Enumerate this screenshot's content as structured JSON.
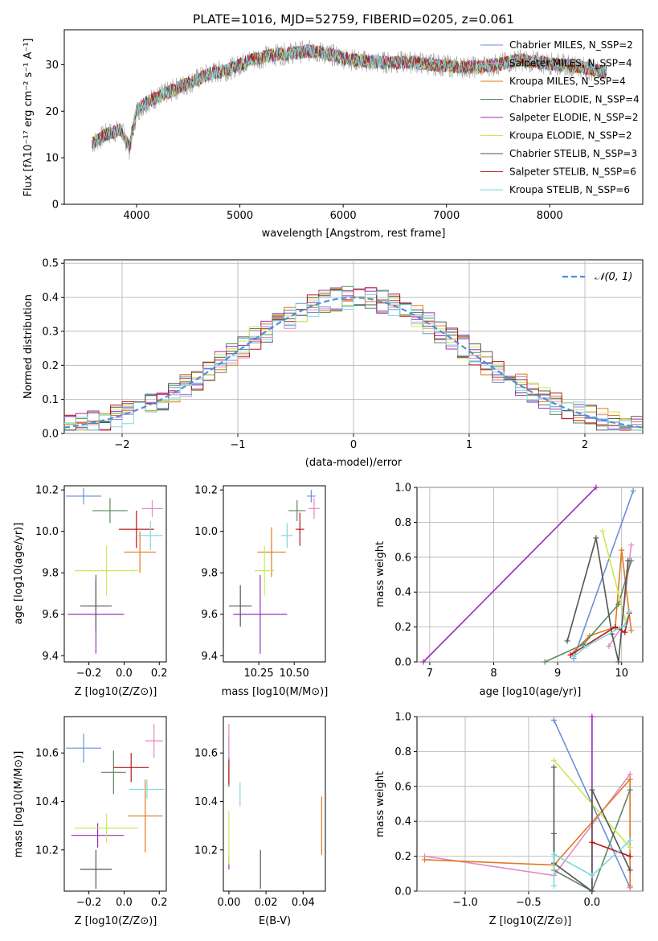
{
  "figure_title": "PLATE=1016, MJD=52759, FIBERID=0205, z=0.061",
  "colors": {
    "Chabrier MILES": "#6a8fd8",
    "Salpeter MILES": "#e48ac2",
    "Kroupa MILES": "#e07a22",
    "Chabrier ELODIE": "#5b8a5b",
    "Salpeter ELODIE": "#9b2fb5",
    "Kroupa ELODIE": "#c7ea55",
    "Chabrier STELIB": "#555555",
    "Salpeter STELIB": "#b81818",
    "Kroupa STELIB": "#7fd9dd",
    "data": "#a0a0a0",
    "gaussian": "#4d8fe0"
  },
  "chart_data": [
    {
      "id": "spectrum",
      "type": "line",
      "title": "PLATE=1016, MJD=52759, FIBERID=0205, z=0.061",
      "xlabel": "wavelength [Angstrom, rest frame]",
      "ylabel": "Flux [fλ10⁻¹⁷ erg cm⁻² s⁻¹ A⁻¹]",
      "xlim": [
        3300,
        8900
      ],
      "ylim": [
        0,
        37.5
      ],
      "xticks": [
        "4000",
        "5000",
        "6000",
        "7000",
        "8000"
      ],
      "yticks": [
        "0",
        "10",
        "20",
        "30"
      ],
      "legend_position": "top-right",
      "legend": [
        "Chabrier MILES, N_SSP=2",
        "Salpeter MILES, N_SSP=4",
        "Kroupa MILES, N_SSP=4",
        "Chabrier ELODIE, N_SSP=4",
        "Salpeter ELODIE, N_SSP=2",
        "Kroupa ELODIE, N_SSP=2",
        "Chabrier STELIB, N_SSP=3",
        "Salpeter STELIB, N_SSP=6",
        "Kroupa STELIB, N_SSP=6"
      ],
      "continuum_x": [
        3570,
        3700,
        3850,
        3930,
        4000,
        4100,
        4300,
        4500,
        4700,
        4900,
        5100,
        5300,
        5500,
        5700,
        5900,
        6100,
        6300,
        6500,
        6700,
        6900,
        7100,
        7300,
        7500,
        7700,
        7900,
        8100,
        8300,
        8500
      ],
      "continuum_y": [
        13,
        15,
        16,
        12,
        20,
        22,
        24,
        26,
        28,
        29,
        31,
        32,
        32.5,
        33,
        32,
        31,
        30.5,
        30.5,
        30.5,
        30,
        29.5,
        29.5,
        30,
        31,
        30.5,
        30,
        29.5,
        28.5
      ]
    },
    {
      "id": "residuals",
      "type": "line",
      "xlabel": "(data-model)/error",
      "ylabel": "Normed distribution",
      "xlim": [
        -2.5,
        2.5
      ],
      "ylim": [
        0,
        0.51
      ],
      "xticks": [
        "−2",
        "−1",
        "0",
        "1",
        "2"
      ],
      "yticks": [
        "0.0",
        "0.1",
        "0.2",
        "0.3",
        "0.4",
        "0.5"
      ],
      "grid": true,
      "legend_position": "top-right",
      "legend": [
        "𝒩(0, 1)"
      ],
      "gaussian": {
        "mean": 0,
        "sigma": 1
      }
    },
    {
      "id": "z_vs_age",
      "type": "scatter",
      "xlabel": "Z [log10(Z/Z⊙)]",
      "ylabel": "age  [log10(age/yr)]",
      "xlim": [
        -0.34,
        0.24
      ],
      "ylim": [
        9.37,
        10.22
      ],
      "xticks": [
        "−0.2",
        "0.0",
        "0.2"
      ],
      "yticks": [
        "9.4",
        "9.6",
        "9.8",
        "10.0",
        "10.2"
      ],
      "points": [
        {
          "model": "Chabrier MILES",
          "x": -0.23,
          "xerr": 0.1,
          "y": 10.17,
          "yerr": 0.04
        },
        {
          "model": "Salpeter MILES",
          "x": 0.16,
          "xerr": 0.06,
          "y": 10.11,
          "yerr": 0.04
        },
        {
          "model": "Kroupa MILES",
          "x": 0.09,
          "xerr": 0.09,
          "y": 9.9,
          "yerr": 0.1
        },
        {
          "model": "Chabrier ELODIE",
          "x": -0.08,
          "xerr": 0.1,
          "y": 10.1,
          "yerr": 0.06
        },
        {
          "model": "Salpeter ELODIE",
          "x": -0.16,
          "xerr": 0.16,
          "y": 9.6,
          "yerr": 0.19
        },
        {
          "model": "Kroupa ELODIE",
          "x": -0.1,
          "xerr": 0.18,
          "y": 9.81,
          "yerr": 0.12
        },
        {
          "model": "Chabrier STELIB",
          "x": -0.16,
          "xerr": 0.09,
          "y": 9.64,
          "yerr": 0.12
        },
        {
          "model": "Salpeter STELIB",
          "x": 0.07,
          "xerr": 0.1,
          "y": 10.01,
          "yerr": 0.09
        },
        {
          "model": "Kroupa STELIB",
          "x": 0.15,
          "xerr": 0.07,
          "y": 9.98,
          "yerr": 0.07
        }
      ]
    },
    {
      "id": "mass_vs_age",
      "type": "scatter",
      "xlabel": "mass [log10(M/M⊙)]",
      "xlim": [
        10.0,
        10.72
      ],
      "ylim": [
        9.37,
        10.22
      ],
      "xticks": [
        "10.25",
        "10.50"
      ],
      "yticks": [
        "9.4",
        "9.6",
        "9.8",
        "10.0",
        "10.2"
      ],
      "points": [
        {
          "model": "Chabrier MILES",
          "x": 10.62,
          "xerr": 0.03,
          "y": 10.17,
          "yerr": 0.03
        },
        {
          "model": "Salpeter MILES",
          "x": 10.64,
          "xerr": 0.04,
          "y": 10.11,
          "yerr": 0.05
        },
        {
          "model": "Kroupa MILES",
          "x": 10.34,
          "xerr": 0.1,
          "y": 9.9,
          "yerr": 0.12
        },
        {
          "model": "Chabrier ELODIE",
          "x": 10.52,
          "xerr": 0.06,
          "y": 10.1,
          "yerr": 0.05
        },
        {
          "model": "Salpeter ELODIE",
          "x": 10.26,
          "xerr": 0.19,
          "y": 9.6,
          "yerr": 0.19
        },
        {
          "model": "Kroupa ELODIE",
          "x": 10.29,
          "xerr": 0.07,
          "y": 9.81,
          "yerr": 0.12
        },
        {
          "model": "Chabrier STELIB",
          "x": 10.12,
          "xerr": 0.08,
          "y": 9.64,
          "yerr": 0.1
        },
        {
          "model": "Salpeter STELIB",
          "x": 10.54,
          "xerr": 0.03,
          "y": 10.01,
          "yerr": 0.08
        },
        {
          "model": "Kroupa STELIB",
          "x": 10.45,
          "xerr": 0.04,
          "y": 9.98,
          "yerr": 0.06
        }
      ]
    },
    {
      "id": "weight_vs_age",
      "type": "line",
      "xlabel": "age  [log10(age/yr)]",
      "ylabel": "mass weight",
      "xlim": [
        6.8,
        10.33
      ],
      "ylim": [
        0,
        1
      ],
      "xticks": [
        "7",
        "8",
        "9",
        "10"
      ],
      "yticks": [
        "0.0",
        "0.2",
        "0.4",
        "0.6",
        "0.8",
        "1.0"
      ],
      "grid": true,
      "series": [
        {
          "model": "Chabrier MILES",
          "x": [
            9.25,
            10.18
          ],
          "y": [
            0.02,
            0.98
          ]
        },
        {
          "model": "Salpeter MILES",
          "x": [
            9.8,
            10.0,
            10.15
          ],
          "y": [
            0.09,
            0.2,
            0.67
          ]
        },
        {
          "model": "Kroupa MILES",
          "x": [
            9.2,
            9.5,
            9.9,
            10.0,
            10.15
          ],
          "y": [
            0.04,
            0.15,
            0.2,
            0.64,
            0.18
          ]
        },
        {
          "model": "Chabrier ELODIE",
          "x": [
            8.8,
            9.4,
            9.95,
            10.15
          ],
          "y": [
            0.0,
            0.1,
            0.33,
            0.58
          ]
        },
        {
          "model": "Salpeter ELODIE",
          "x": [
            6.9,
            9.6
          ],
          "y": [
            0.0,
            1.0
          ]
        },
        {
          "model": "Kroupa ELODIE",
          "x": [
            9.7,
            10.05
          ],
          "y": [
            0.75,
            0.25
          ]
        },
        {
          "model": "Chabrier STELIB",
          "x": [
            9.15,
            9.6,
            9.85,
            9.95,
            10.1
          ],
          "y": [
            0.12,
            0.71,
            0.16,
            0.0,
            0.58
          ]
        },
        {
          "model": "Salpeter STELIB",
          "x": [
            9.2,
            9.9,
            10.05,
            10.12
          ],
          "y": [
            0.04,
            0.2,
            0.17,
            0.28
          ]
        },
        {
          "model": "Kroupa STELIB",
          "x": [
            9.25,
            9.45,
            10.05,
            10.12
          ],
          "y": [
            0.03,
            0.09,
            0.21,
            0.29
          ]
        }
      ]
    },
    {
      "id": "z_vs_mass",
      "type": "scatter",
      "xlabel": "Z [log10(Z/Z⊙)]",
      "ylabel": "mass [log10(M/M⊙)]",
      "xlim": [
        -0.34,
        0.24
      ],
      "ylim": [
        10.03,
        10.75
      ],
      "xticks": [
        "−0.2",
        "0.0",
        "0.2"
      ],
      "yticks": [
        "10.2",
        "10.4",
        "10.6"
      ],
      "points": [
        {
          "model": "Chabrier MILES",
          "x": -0.23,
          "xerr": 0.1,
          "y": 10.62,
          "yerr": 0.06
        },
        {
          "model": "Salpeter MILES",
          "x": 0.17,
          "xerr": 0.05,
          "y": 10.65,
          "yerr": 0.07
        },
        {
          "model": "Kroupa MILES",
          "x": 0.12,
          "xerr": 0.1,
          "y": 10.34,
          "yerr": 0.15
        },
        {
          "model": "Chabrier ELODIE",
          "x": -0.06,
          "xerr": 0.07,
          "y": 10.52,
          "yerr": 0.09
        },
        {
          "model": "Salpeter ELODIE",
          "x": -0.15,
          "xerr": 0.15,
          "y": 10.26,
          "yerr": 0.05
        },
        {
          "model": "Kroupa ELODIE",
          "x": -0.1,
          "xerr": 0.18,
          "y": 10.29,
          "yerr": 0.06
        },
        {
          "model": "Chabrier STELIB",
          "x": -0.16,
          "xerr": 0.09,
          "y": 10.12,
          "yerr": 0.08
        },
        {
          "model": "Salpeter STELIB",
          "x": 0.04,
          "xerr": 0.1,
          "y": 10.54,
          "yerr": 0.06
        },
        {
          "model": "Kroupa STELIB",
          "x": 0.13,
          "xerr": 0.1,
          "y": 10.45,
          "yerr": 0.04
        }
      ]
    },
    {
      "id": "ebv_vs_mass",
      "type": "scatter",
      "xlabel": "E(B-V)",
      "xlim": [
        -0.003,
        0.052
      ],
      "ylim": [
        10.03,
        10.75
      ],
      "xticks": [
        "0.00",
        "0.02",
        "0.04"
      ],
      "yticks": [
        "10.2",
        "10.4",
        "10.6"
      ],
      "points": [
        {
          "model": "Chabrier MILES",
          "x": 0.0,
          "xerr": 0,
          "y": 10.62,
          "yerr": 0.05
        },
        {
          "model": "Salpeter MILES",
          "x": 0.0,
          "xerr": 0,
          "y": 10.65,
          "yerr": 0.07
        },
        {
          "model": "Kroupa MILES",
          "x": 0.05,
          "xerr": 0,
          "y": 10.3,
          "yerr": 0.12
        },
        {
          "model": "Chabrier ELODIE",
          "x": 0.0,
          "xerr": 0,
          "y": 10.52,
          "yerr": 0.06
        },
        {
          "model": "Salpeter ELODIE",
          "x": 0.0,
          "xerr": 0,
          "y": 10.15,
          "yerr": 0.03
        },
        {
          "model": "Kroupa ELODIE",
          "x": 0.0,
          "xerr": 0,
          "y": 10.25,
          "yerr": 0.11
        },
        {
          "model": "Chabrier STELIB",
          "x": 0.017,
          "xerr": 0,
          "y": 10.12,
          "yerr": 0.08
        },
        {
          "model": "Salpeter STELIB",
          "x": 0.0,
          "xerr": 0,
          "y": 10.52,
          "yerr": 0.05
        },
        {
          "model": "Kroupa STELIB",
          "x": 0.006,
          "xerr": 0,
          "y": 10.43,
          "yerr": 0.05
        }
      ]
    },
    {
      "id": "weight_vs_z",
      "type": "line",
      "xlabel": "Z [log10(Z/Z⊙)]",
      "ylabel": "mass weight",
      "xlim": [
        -1.38,
        0.4
      ],
      "ylim": [
        0,
        1
      ],
      "xticks": [
        "−1.0",
        "−0.5",
        "0.0"
      ],
      "yticks": [
        "0.0",
        "0.2",
        "0.4",
        "0.6",
        "0.8",
        "1.0"
      ],
      "grid": true,
      "series": [
        {
          "model": "Chabrier MILES",
          "x": [
            -0.3,
            0.3
          ],
          "y": [
            0.98,
            0.02
          ]
        },
        {
          "model": "Salpeter MILES",
          "x": [
            -1.32,
            -0.3,
            0.3,
            0.3
          ],
          "y": [
            0.2,
            0.09,
            0.67,
            0.02
          ]
        },
        {
          "model": "Kroupa MILES",
          "x": [
            -1.32,
            -0.3,
            0.3,
            0.3
          ],
          "y": [
            0.18,
            0.15,
            0.64,
            0.03
          ]
        },
        {
          "model": "Chabrier ELODIE",
          "x": [
            -0.3,
            -0.3,
            0.0,
            0.3
          ],
          "y": [
            0.33,
            0.12,
            0.0,
            0.58
          ]
        },
        {
          "model": "Salpeter ELODIE",
          "x": [
            0.0,
            0.0
          ],
          "y": [
            0.0,
            1.0
          ]
        },
        {
          "model": "Kroupa ELODIE",
          "x": [
            -0.3,
            0.3
          ],
          "y": [
            0.75,
            0.25
          ]
        },
        {
          "model": "Chabrier STELIB",
          "x": [
            -0.3,
            -0.3,
            0.0,
            0.0,
            0.3
          ],
          "y": [
            0.71,
            0.16,
            0.0,
            0.58,
            0.12
          ]
        },
        {
          "model": "Salpeter STELIB",
          "x": [
            0.0,
            0.3
          ],
          "y": [
            0.28,
            0.2
          ]
        },
        {
          "model": "Kroupa STELIB",
          "x": [
            -0.3,
            -0.3,
            0.0,
            0.3
          ],
          "y": [
            0.03,
            0.21,
            0.09,
            0.29
          ]
        }
      ]
    }
  ]
}
